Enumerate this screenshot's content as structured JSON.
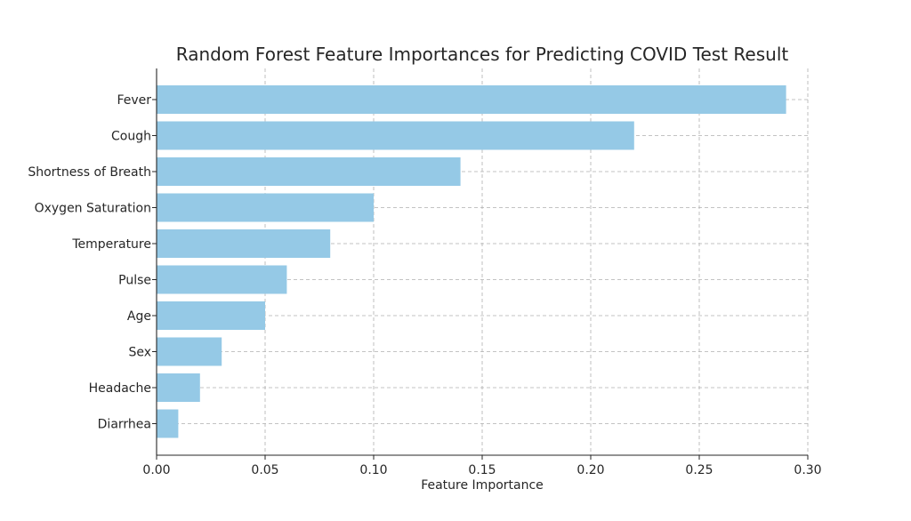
{
  "chart_data": {
    "type": "bar",
    "orientation": "horizontal",
    "title": "Random Forest Feature Importances for Predicting COVID Test Result",
    "xlabel": "Feature Importance",
    "ylabel": "",
    "categories": [
      "Fever",
      "Cough",
      "Shortness of Breath",
      "Oxygen Saturation",
      "Temperature",
      "Pulse",
      "Age",
      "Sex",
      "Headache",
      "Diarrhea"
    ],
    "values": [
      0.29,
      0.22,
      0.14,
      0.1,
      0.08,
      0.06,
      0.05,
      0.03,
      0.02,
      0.01
    ],
    "xlim": [
      0,
      0.3
    ],
    "xticks": [
      0.0,
      0.05,
      0.1,
      0.15,
      0.2,
      0.25,
      0.3
    ],
    "xtick_labels": [
      "0.00",
      "0.05",
      "0.10",
      "0.15",
      "0.20",
      "0.25",
      "0.30"
    ],
    "grid": true,
    "bar_color": "#95c9e6"
  }
}
